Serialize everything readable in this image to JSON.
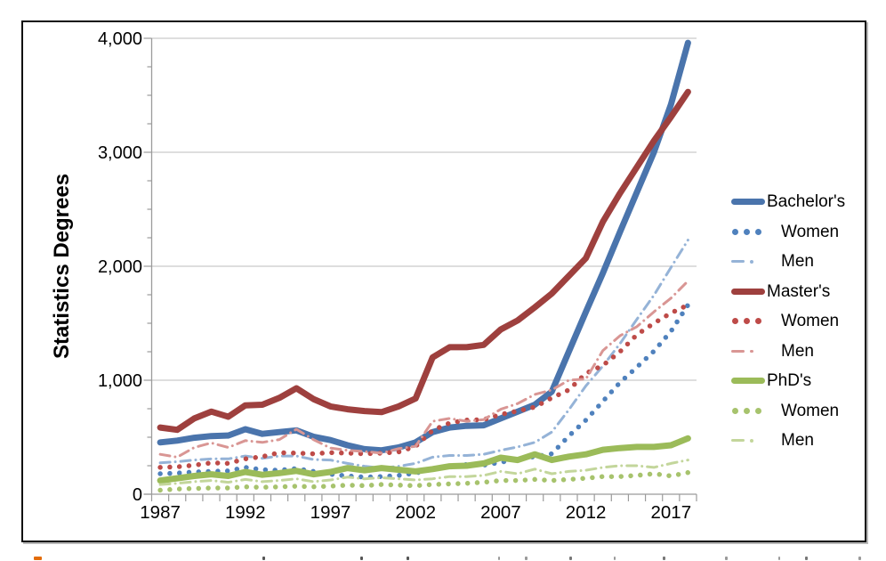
{
  "chart_data": {
    "type": "line",
    "title": "",
    "xlabel": "",
    "ylabel": "Statistics Degrees",
    "ylim": [
      0,
      4000
    ],
    "y_major_step": 1000,
    "y_minor_step": 250,
    "grid": "horizontal-major",
    "legend_position": "right",
    "x": [
      1987,
      1988,
      1989,
      1990,
      1991,
      1992,
      1993,
      1994,
      1995,
      1996,
      1997,
      1998,
      1999,
      2000,
      2001,
      2002,
      2003,
      2004,
      2005,
      2006,
      2007,
      2008,
      2009,
      2010,
      2011,
      2012,
      2013,
      2014,
      2015,
      2016,
      2017,
      2018
    ],
    "x_tick_labels": [
      "1987",
      "1992",
      "1997",
      "2002",
      "2007",
      "2012",
      "2017"
    ],
    "y_tick_labels": [
      "0",
      "1,000",
      "2,000",
      "3,000",
      "4,000"
    ],
    "series": [
      {
        "name": "bachelors-total",
        "legend_label": "Bachelor's",
        "group": "Bachelor's",
        "indent": false,
        "style": "thick",
        "color": "#4A74AC",
        "values": [
          455,
          470,
          495,
          510,
          515,
          570,
          530,
          545,
          560,
          505,
          475,
          430,
          395,
          385,
          410,
          455,
          545,
          585,
          600,
          605,
          665,
          725,
          785,
          900,
          1250,
          1600,
          1940,
          2300,
          2650,
          3000,
          3420,
          3960
        ]
      },
      {
        "name": "bachelors-women",
        "legend_label": "Women",
        "group": "Bachelor's",
        "indent": true,
        "style": "dotted",
        "color": "#4F81BD",
        "values": [
          180,
          185,
          195,
          200,
          205,
          235,
          215,
          210,
          225,
          200,
          175,
          160,
          150,
          155,
          165,
          185,
          220,
          245,
          260,
          255,
          280,
          310,
          330,
          355,
          510,
          650,
          815,
          980,
          1115,
          1255,
          1430,
          1660
        ]
      },
      {
        "name": "bachelors-men",
        "legend_label": "Men",
        "group": "Bachelor's",
        "indent": true,
        "style": "dashdot",
        "color": "#95B3D7",
        "values": [
          275,
          285,
          300,
          310,
          310,
          335,
          315,
          335,
          335,
          305,
          300,
          270,
          245,
          230,
          245,
          270,
          325,
          340,
          340,
          350,
          385,
          415,
          455,
          545,
          740,
          950,
          1125,
          1320,
          1535,
          1745,
          1990,
          2230
        ]
      },
      {
        "name": "masters-total",
        "legend_label": "Master's",
        "group": "Master's",
        "indent": false,
        "style": "thick",
        "color": "#9E403E",
        "values": [
          585,
          565,
          665,
          725,
          680,
          780,
          785,
          845,
          930,
          835,
          770,
          745,
          730,
          720,
          770,
          840,
          1200,
          1290,
          1290,
          1310,
          1445,
          1525,
          1640,
          1760,
          1915,
          2070,
          2390,
          2640,
          2870,
          3100,
          3310,
          3530
        ]
      },
      {
        "name": "masters-women",
        "legend_label": "Women",
        "group": "Master's",
        "indent": true,
        "style": "dotted",
        "color": "#BE4B48",
        "values": [
          235,
          240,
          255,
          275,
          270,
          310,
          330,
          365,
          360,
          355,
          365,
          360,
          355,
          360,
          370,
          420,
          560,
          625,
          650,
          655,
          700,
          730,
          765,
          845,
          915,
          1060,
          1130,
          1250,
          1400,
          1500,
          1590,
          1660
        ]
      },
      {
        "name": "masters-men",
        "legend_label": "Men",
        "group": "Master's",
        "indent": true,
        "style": "dashdot",
        "color": "#D99694",
        "values": [
          350,
          325,
          410,
          450,
          410,
          470,
          455,
          480,
          570,
          480,
          405,
          385,
          375,
          360,
          400,
          420,
          640,
          665,
          640,
          655,
          745,
          795,
          875,
          915,
          1000,
          1010,
          1260,
          1390,
          1470,
          1600,
          1720,
          1870
        ]
      },
      {
        "name": "phds-total",
        "legend_label": "PhD's",
        "group": "PhD's",
        "indent": false,
        "style": "thick",
        "color": "#9BBB59",
        "values": [
          120,
          140,
          160,
          175,
          160,
          195,
          170,
          185,
          205,
          175,
          195,
          230,
          210,
          230,
          215,
          200,
          220,
          245,
          250,
          270,
          320,
          300,
          350,
          300,
          330,
          350,
          390,
          405,
          415,
          415,
          430,
          490
        ]
      },
      {
        "name": "phds-women",
        "legend_label": "Women",
        "group": "PhD's",
        "indent": true,
        "style": "dotted",
        "color": "#A7C36D",
        "values": [
          35,
          45,
          50,
          55,
          55,
          65,
          60,
          65,
          70,
          65,
          70,
          80,
          75,
          85,
          80,
          75,
          85,
          90,
          95,
          105,
          120,
          120,
          130,
          120,
          130,
          140,
          155,
          155,
          165,
          180,
          160,
          190
        ]
      },
      {
        "name": "phds-men",
        "legend_label": "Men",
        "group": "PhD's",
        "indent": true,
        "style": "dashdot",
        "color": "#C3D69B",
        "values": [
          85,
          95,
          110,
          120,
          105,
          130,
          110,
          120,
          135,
          110,
          125,
          150,
          135,
          145,
          135,
          125,
          135,
          155,
          155,
          165,
          200,
          180,
          220,
          180,
          200,
          210,
          235,
          250,
          250,
          235,
          270,
          300
        ]
      }
    ],
    "colors": {
      "gridline": "#C9C9C9",
      "axis": "#9B9B9B",
      "text": "#000000",
      "frame_border": "#0d0d0d"
    }
  }
}
